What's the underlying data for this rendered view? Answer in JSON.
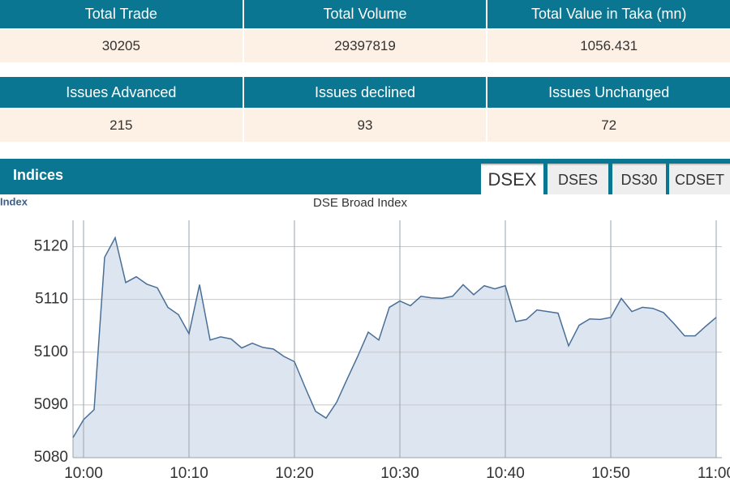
{
  "summary_table": {
    "headers": [
      "Total Trade",
      "Total Volume",
      "Total Value in Taka (mn)"
    ],
    "values": [
      "30205",
      "29397819",
      "1056.431"
    ]
  },
  "issues_table": {
    "headers": [
      "Issues Advanced",
      "Issues declined",
      "Issues Unchanged"
    ],
    "values": [
      "215",
      "93",
      "72"
    ]
  },
  "indices": {
    "title": "Indices",
    "tabs": [
      "DSEX",
      "DSES",
      "DS30",
      "CDSET"
    ],
    "active_tab": 0
  },
  "chart_data": {
    "type": "area",
    "title": "DSE Broad Index",
    "y_label": "Index",
    "color": "#4a6f97",
    "fill": "#dde6f0",
    "grid": true,
    "x": [
      "09:59",
      "10:00",
      "10:01",
      "10:02",
      "10:03",
      "10:04",
      "10:05",
      "10:06",
      "10:07",
      "10:08",
      "10:09",
      "10:10",
      "10:11",
      "10:12",
      "10:13",
      "10:14",
      "10:15",
      "10:16",
      "10:17",
      "10:18",
      "10:19",
      "10:20",
      "10:21",
      "10:22",
      "10:23",
      "10:24",
      "10:25",
      "10:26",
      "10:27",
      "10:28",
      "10:29",
      "10:30",
      "10:31",
      "10:32",
      "10:33",
      "10:34",
      "10:35",
      "10:36",
      "10:37",
      "10:38",
      "10:39",
      "10:40",
      "10:41",
      "10:42",
      "10:43",
      "10:44",
      "10:45",
      "10:46",
      "10:47",
      "10:48",
      "10:49",
      "10:50",
      "10:51",
      "10:52",
      "10:53",
      "10:54",
      "10:55",
      "10:56",
      "10:57",
      "10:58",
      "10:59",
      "11:00"
    ],
    "values": [
      5083.8,
      5087.2,
      5089.1,
      5118,
      5121.7,
      5113.2,
      5114.3,
      5112.9,
      5112.2,
      5108.5,
      5107.1,
      5103.5,
      5112.8,
      5102.3,
      5102.9,
      5102.5,
      5100.8,
      5101.7,
      5100.9,
      5100.6,
      5099.2,
      5098.2,
      5093.4,
      5088.8,
      5087.5,
      5090.5,
      5094.9,
      5099.2,
      5103.8,
      5102.3,
      5108.5,
      5109.7,
      5108.8,
      5110.6,
      5110.3,
      5110.2,
      5110.6,
      5112.8,
      5110.9,
      5112.6,
      5112,
      5112.6,
      5105.8,
      5106.2,
      5108,
      5107.7,
      5107.4,
      5101.2,
      5105.1,
      5106.3,
      5106.2,
      5106.6,
      5110.2,
      5107.7,
      5108.5,
      5108.3,
      5107.5,
      5105.4,
      5103.1,
      5103.1,
      5104.9,
      5106.6
    ],
    "xlim": [
      "09:59",
      "11:00"
    ],
    "xticks": [
      "10:00",
      "10:10",
      "10:20",
      "10:30",
      "10:40",
      "10:50",
      "11:00"
    ],
    "ylim": [
      5080,
      5125
    ],
    "yticks": [
      5080,
      5090,
      5100,
      5110,
      5120
    ]
  }
}
